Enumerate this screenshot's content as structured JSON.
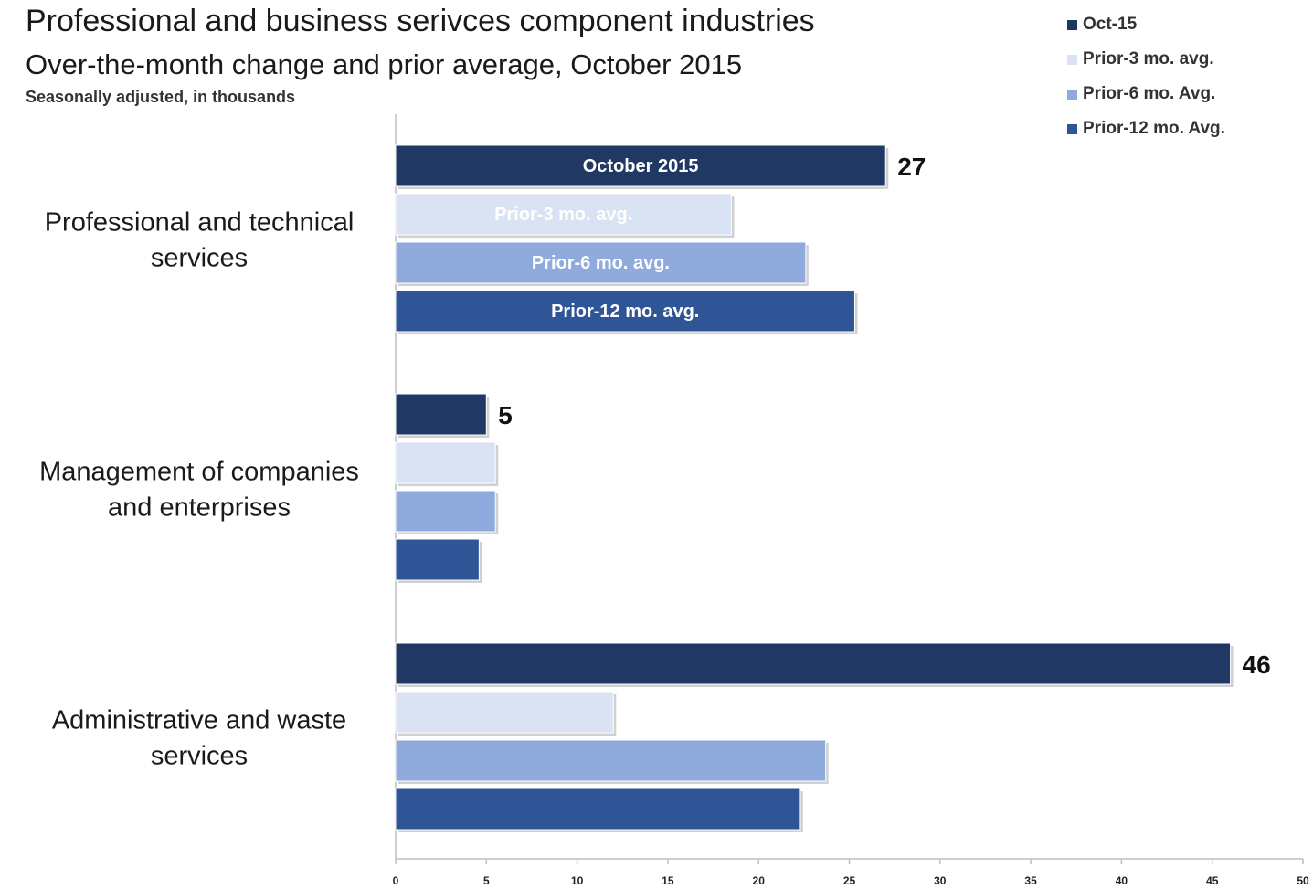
{
  "chart_data": {
    "type": "bar",
    "orientation": "horizontal",
    "title": "Professional and business serivces component industries",
    "subtitle": "Over-the-month change and prior average, October 2015",
    "note": "Seasonally adjusted, in thousands",
    "categories": [
      [
        "Professional and technical",
        "services"
      ],
      [
        "Management of companies",
        "and enterprises"
      ],
      [
        "Administrative and waste",
        "services"
      ]
    ],
    "series": [
      {
        "name": "Oct-15",
        "bar_label": "October 2015",
        "color": "#1f3864",
        "values": [
          27,
          5,
          46
        ],
        "value_labels": [
          "27",
          "5",
          "46"
        ]
      },
      {
        "name": "Prior-3 mo. avg.",
        "bar_label": "Prior-3 mo. avg.",
        "color": "#dae3f3",
        "values": [
          18.5,
          5.5,
          12
        ]
      },
      {
        "name": "Prior-6 mo. Avg.",
        "bar_label": "Prior-6 mo. avg.",
        "color": "#8faadc",
        "values": [
          22.6,
          5.5,
          23.7
        ]
      },
      {
        "name": "Prior-12 mo. Avg.",
        "bar_label": "Prior-12 mo. avg.",
        "color": "#2f5597",
        "values": [
          25.3,
          4.6,
          22.3
        ]
      }
    ],
    "xlim": [
      0,
      50
    ],
    "xticks": [
      "0",
      "5",
      "10",
      "15",
      "20",
      "25",
      "30",
      "35",
      "40",
      "45",
      "50"
    ],
    "legend_position": "top-right",
    "grid": false
  }
}
